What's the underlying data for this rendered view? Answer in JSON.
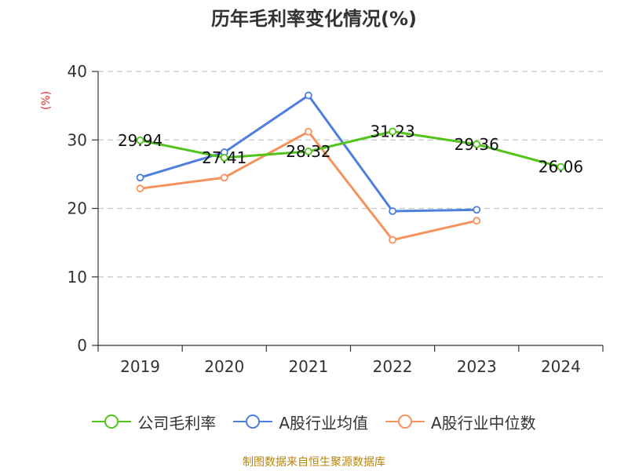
{
  "title": "历年毛利率变化情况(%)",
  "source": "制图数据来自恒生聚源数据库",
  "chart_data": {
    "type": "line",
    "title": "历年毛利率变化情况(%)",
    "ylabel": "(%)",
    "xlabel": "",
    "categories": [
      "2019",
      "2020",
      "2021",
      "2022",
      "2023",
      "2024"
    ],
    "ylim": [
      0,
      40
    ],
    "yticks": [
      0,
      10,
      20,
      30,
      40
    ],
    "grid": true,
    "legend_position": "bottom",
    "series": [
      {
        "name": "公司毛利率",
        "color": "#52c41a",
        "values": [
          29.94,
          27.41,
          28.32,
          31.23,
          29.36,
          26.06
        ],
        "labels": [
          "29.94",
          "27.41",
          "28.32",
          "31.23",
          "29.36",
          "26.06"
        ]
      },
      {
        "name": "A股行业均值",
        "color": "#4e7fdc",
        "values": [
          24.5,
          28.2,
          36.5,
          19.6,
          19.8,
          null
        ]
      },
      {
        "name": "A股行业中位数",
        "color": "#f5935c",
        "values": [
          22.9,
          24.5,
          31.2,
          15.4,
          18.2,
          null
        ]
      }
    ]
  }
}
